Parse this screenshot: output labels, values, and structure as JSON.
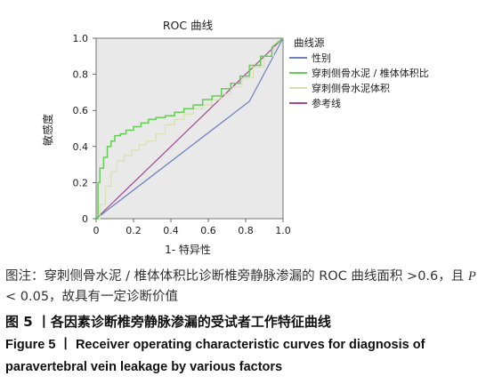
{
  "chart_data": {
    "type": "line",
    "title": "ROC 曲线",
    "xlabel": "1- 特异性",
    "ylabel": "敏感度",
    "xlim": [
      0,
      1
    ],
    "ylim": [
      0,
      1
    ],
    "xticks": [
      "0",
      "0.2",
      "0.4",
      "0.6",
      "0.8",
      "1.0"
    ],
    "yticks": [
      "0",
      "0.2",
      "0.4",
      "0.6",
      "0.8",
      "1.0"
    ],
    "grid": false,
    "legend_title": "曲线源",
    "legend_position": "right",
    "series": [
      {
        "name": "性别",
        "color": "#6f7fbf",
        "x": [
          0,
          0.82,
          1.0
        ],
        "y": [
          0,
          0.65,
          1.0
        ]
      },
      {
        "name": "穿刺侧骨水泥 / 椎体体积比",
        "color": "#66cc55",
        "x": [
          0,
          0.01,
          0.01,
          0.02,
          0.02,
          0.04,
          0.04,
          0.06,
          0.06,
          0.08,
          0.08,
          0.1,
          0.1,
          0.13,
          0.13,
          0.16,
          0.16,
          0.2,
          0.2,
          0.24,
          0.24,
          0.28,
          0.28,
          0.32,
          0.32,
          0.37,
          0.37,
          0.42,
          0.42,
          0.47,
          0.47,
          0.52,
          0.52,
          0.57,
          0.57,
          0.62,
          0.62,
          0.67,
          0.67,
          0.72,
          0.72,
          0.77,
          0.77,
          0.82,
          0.82,
          0.88,
          0.88,
          0.94,
          0.94,
          1.0
        ],
        "y": [
          0,
          0,
          0.2,
          0.2,
          0.28,
          0.28,
          0.34,
          0.34,
          0.4,
          0.4,
          0.43,
          0.43,
          0.46,
          0.46,
          0.47,
          0.47,
          0.49,
          0.49,
          0.51,
          0.51,
          0.53,
          0.53,
          0.55,
          0.55,
          0.56,
          0.56,
          0.57,
          0.57,
          0.59,
          0.59,
          0.61,
          0.61,
          0.63,
          0.63,
          0.66,
          0.66,
          0.68,
          0.68,
          0.72,
          0.72,
          0.75,
          0.75,
          0.79,
          0.79,
          0.85,
          0.85,
          0.9,
          0.9,
          0.95,
          1.0
        ]
      },
      {
        "name": "穿刺侧骨水泥体积",
        "color": "#d9dfb0",
        "x": [
          0,
          0.02,
          0.02,
          0.05,
          0.05,
          0.08,
          0.08,
          0.11,
          0.11,
          0.15,
          0.15,
          0.19,
          0.19,
          0.23,
          0.23,
          0.27,
          0.27,
          0.32,
          0.32,
          0.37,
          0.37,
          0.42,
          0.42,
          0.47,
          0.47,
          0.52,
          0.52,
          0.57,
          0.57,
          0.62,
          0.62,
          0.67,
          0.67,
          0.72,
          0.72,
          0.78,
          0.78,
          0.84,
          0.84,
          0.9,
          0.9,
          0.95,
          0.95,
          1.0
        ],
        "y": [
          0,
          0,
          0.08,
          0.08,
          0.18,
          0.18,
          0.26,
          0.26,
          0.32,
          0.32,
          0.35,
          0.35,
          0.38,
          0.38,
          0.41,
          0.41,
          0.43,
          0.43,
          0.47,
          0.47,
          0.52,
          0.52,
          0.55,
          0.55,
          0.58,
          0.58,
          0.61,
          0.61,
          0.63,
          0.63,
          0.66,
          0.66,
          0.69,
          0.69,
          0.73,
          0.73,
          0.78,
          0.78,
          0.84,
          0.84,
          0.9,
          0.9,
          0.96,
          1.0
        ]
      },
      {
        "name": "参考线",
        "color": "#a04a90",
        "x": [
          0,
          1
        ],
        "y": [
          0,
          1
        ]
      }
    ]
  },
  "note": {
    "prefix": "图注：穿刺侧骨水泥 / 椎体体积比诊断椎旁静脉渗漏的 ROC 曲线面积 >0.6，且 ",
    "p_italic": "P",
    "suffix": " < 0.05，故具有一定诊断价值"
  },
  "caption": {
    "zh": "图 5 丨各因素诊断椎旁静脉渗漏的受试者工作特征曲线",
    "en": "Figure 5 丨 Receiver operating characteristic curves for diagnosis of paravertebral vein leakage by various factors"
  }
}
